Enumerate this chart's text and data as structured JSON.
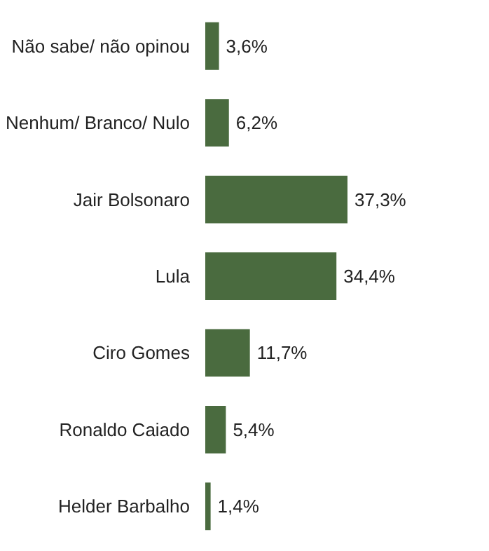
{
  "chart_data": {
    "type": "bar",
    "orientation": "horizontal",
    "categories": [
      "Não sabe/ não opinou",
      "Nenhum/ Branco/ Nulo",
      "Jair Bolsonaro",
      "Lula",
      "Ciro Gomes",
      "Ronaldo Caiado",
      "Helder Barbalho"
    ],
    "values": [
      3.6,
      6.2,
      37.3,
      34.4,
      11.7,
      5.4,
      1.4
    ],
    "value_labels": [
      "3,6%",
      "6,2%",
      "37,3%",
      "34,4%",
      "11,7%",
      "5,4%",
      "1,4%"
    ],
    "color": "#4a6b3f",
    "grid": false
  }
}
